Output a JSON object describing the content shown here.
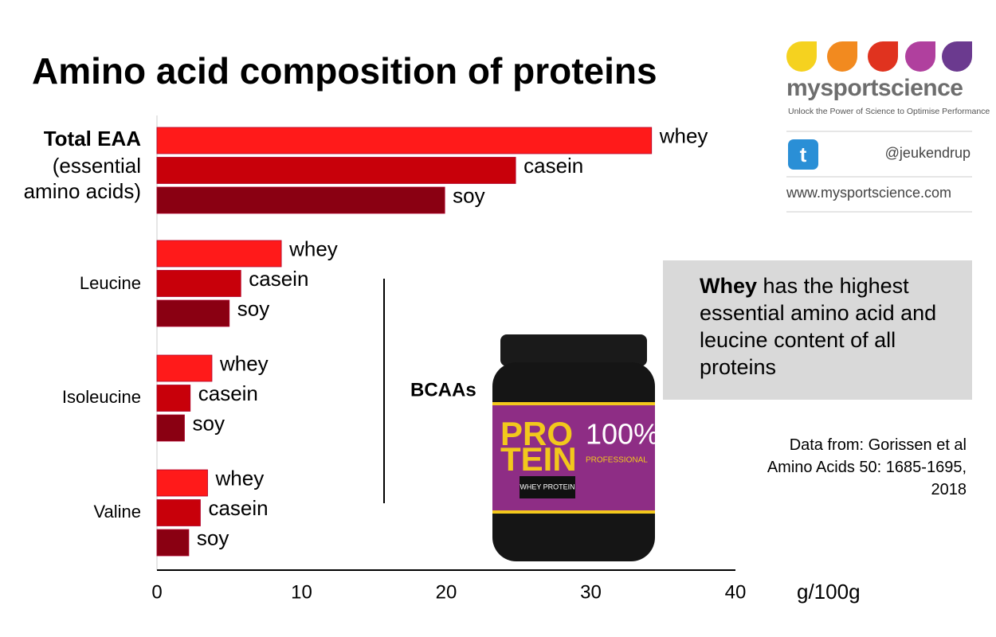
{
  "chart_data": {
    "type": "bar",
    "orientation": "horizontal",
    "title": "Amino acid composition of proteins",
    "categories": [
      "Total EAA",
      "Leucine",
      "Isoleucine",
      "Valine"
    ],
    "category_note": "(essential amino acids)",
    "series": [
      {
        "name": "whey",
        "color": "#ff1a1a",
        "values": [
          34.2,
          8.6,
          3.8,
          3.5
        ]
      },
      {
        "name": "casein",
        "color": "#c8000a",
        "values": [
          24.8,
          5.8,
          2.3,
          3.0
        ]
      },
      {
        "name": "soy",
        "color": "#8a0012",
        "values": [
          19.9,
          5.0,
          1.9,
          2.2
        ]
      }
    ],
    "xlim": [
      0,
      40
    ],
    "xticks": [
      0,
      10,
      20,
      30,
      40
    ],
    "x_label": "g/100g",
    "bracket_label": "BCAAs"
  },
  "callout": {
    "bold": "Whey",
    "text": "has the highest essential amino acid and leucine content of all proteins"
  },
  "source": "Data from: Gorissen et al Amino Acids 50: 1685-1695, 2018",
  "branding": {
    "name": "mysportscience",
    "tagline": "Unlock the Power of Science to Optimise Performance",
    "handle": "@jeukendrup",
    "url": "www.mysportscience.com"
  },
  "product": {
    "brand_top": "PRO",
    "brand_bottom": "TEIN",
    "percent": "100%",
    "grade": "PROFESSIONAL",
    "kind": "WHEY PROTEIN"
  }
}
